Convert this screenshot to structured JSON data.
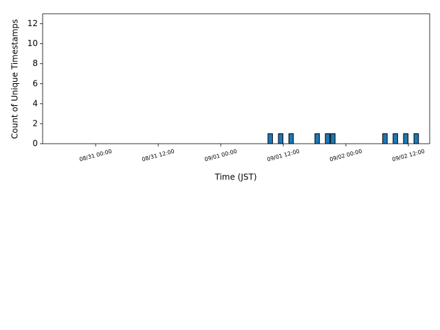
{
  "chart_data": {
    "type": "histogram",
    "xlabel": "Time (JST)",
    "ylabel": "Count of Unique Timestamps",
    "bins": [
      "09/01 09:00",
      "09/01 10:00",
      "09/01 11:00",
      "09/01 12:00",
      "09/01 13:00",
      "09/01 14:00",
      "09/01 15:00",
      "09/01 16:00",
      "09/01 17:00",
      "09/01 18:00",
      "09/01 19:00",
      "09/01 20:00",
      "09/01 21:00",
      "09/01 22:00",
      "09/01 23:00",
      "09/02 00:00",
      "09/02 01:00",
      "09/02 02:00",
      "09/02 03:00",
      "09/02 04:00",
      "09/02 05:00",
      "09/02 06:00",
      "09/02 07:00",
      "09/02 08:00",
      "09/02 09:00",
      "09/02 10:00",
      "09/02 11:00",
      "09/02 12:00",
      "09/02 13:00",
      "09/02 14:00"
    ],
    "counts": [
      1,
      0,
      1,
      0,
      1,
      0,
      0,
      0,
      0,
      1,
      0,
      1,
      1,
      0,
      0,
      0,
      0,
      0,
      0,
      0,
      0,
      0,
      1,
      0,
      1,
      0,
      1,
      0,
      1
    ],
    "color": "#1f77b4",
    "edgecolor": "#000000",
    "xlim": [
      "08/30 13:50",
      "09/02 16:05"
    ],
    "xticks": [
      "08/31 00:00",
      "08/31 12:00",
      "09/01 00:00",
      "09/01 12:00",
      "09/02 00:00",
      "09/02 12:00"
    ],
    "ylim": [
      0,
      13
    ],
    "yticks": [
      0,
      2,
      4,
      6,
      8,
      10,
      12
    ],
    "grid": false
  }
}
